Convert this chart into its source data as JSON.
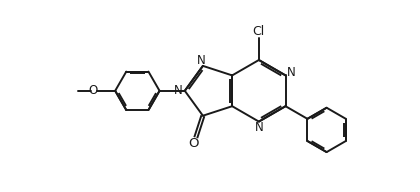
{
  "background_color": "#ffffff",
  "line_color": "#1a1a1a",
  "line_width": 1.4,
  "font_size": 8.5,
  "figsize": [
    4.2,
    1.92
  ],
  "dpi": 100,
  "xlim": [
    0,
    10.5
  ],
  "ylim": [
    0,
    4.8
  ]
}
